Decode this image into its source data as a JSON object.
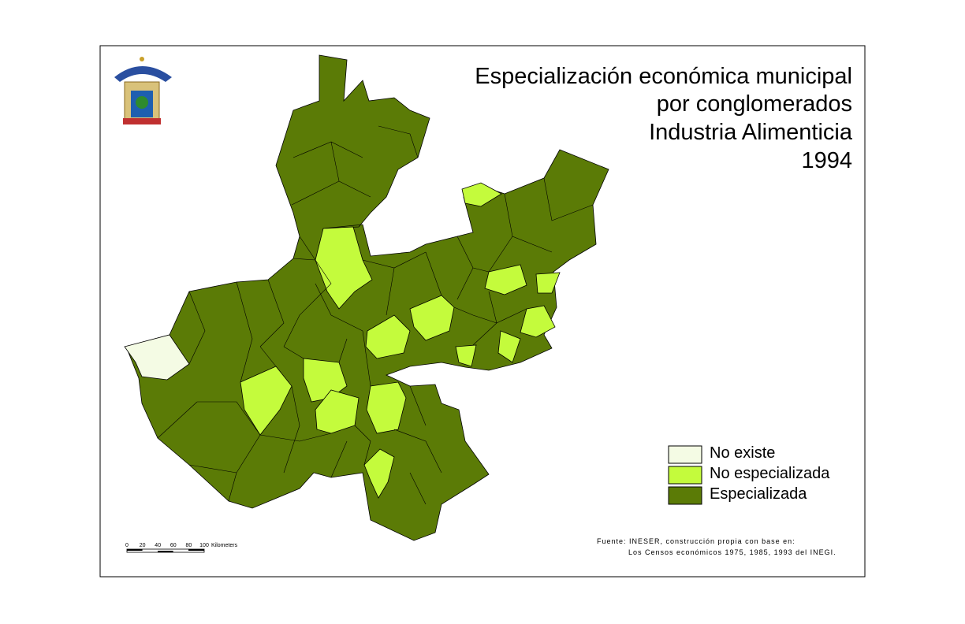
{
  "title": [
    "Especialización económica municipal",
    "por conglomerados",
    "Industria  Alimenticia",
    "1994"
  ],
  "legend": [
    {
      "label": "No existe",
      "color": "#f4fbe4"
    },
    {
      "label": "No especializada",
      "color": "#c4fb3c"
    },
    {
      "label": "Especializada",
      "color": "#5b7b06"
    }
  ],
  "scale_bar": {
    "ticks": [
      "0",
      "20",
      "40",
      "60",
      "80",
      "100"
    ],
    "unit": "Kilometers"
  },
  "source": [
    "Fuente: INESER, construcción propia con base en:",
    "Los Censos económicos 1975, 1985, 1993 del INEGI."
  ]
}
